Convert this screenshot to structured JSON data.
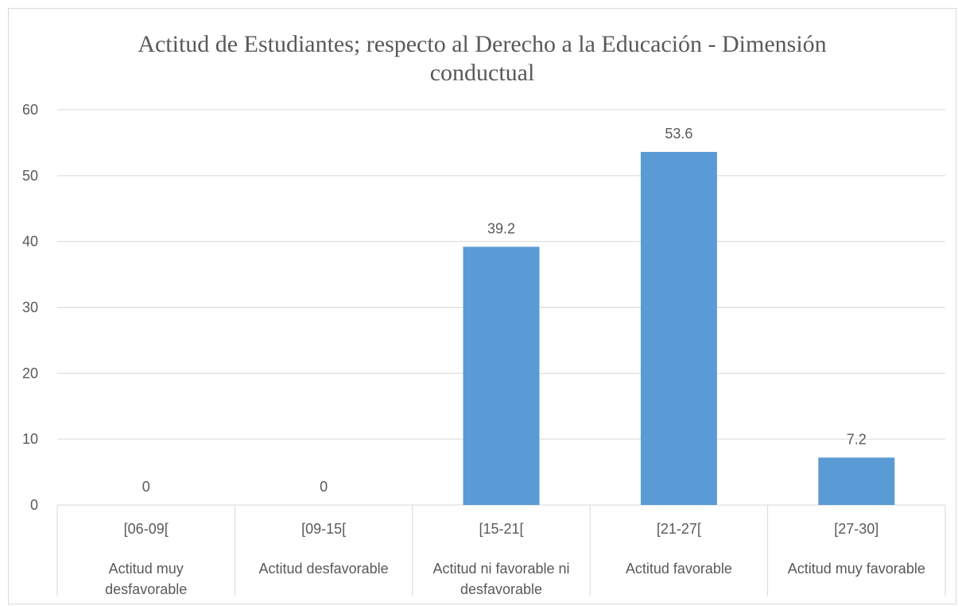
{
  "chart_data": {
    "type": "bar",
    "title_lines": [
      "Actitud de Estudiantes;  respecto al Derecho a la Educación - Dimensión",
      "conductual"
    ],
    "categories": [
      {
        "range": "[06-09[",
        "label": [
          "Actitud muy",
          "desfavorable"
        ]
      },
      {
        "range": "[09-15[",
        "label": [
          "Actitud desfavorable"
        ]
      },
      {
        "range": "[15-21[",
        "label": [
          "Actitud ni favorable ni",
          "desfavorable"
        ]
      },
      {
        "range": "[21-27[",
        "label": [
          "Actitud favorable"
        ]
      },
      {
        "range": "[27-30]",
        "label": [
          "Actitud muy favorable"
        ]
      }
    ],
    "values": [
      0,
      0,
      39.2,
      53.6,
      7.2
    ],
    "data_labels": [
      "0",
      "0",
      "39.2",
      "53.6",
      "7.2"
    ],
    "y_ticks": [
      "0",
      "10",
      "20",
      "30",
      "40",
      "50",
      "60"
    ],
    "ylim": [
      0,
      60
    ],
    "grid": true,
    "bar_color": "#5b9bd5",
    "text_color": "#595959",
    "grid_color": "#d9d9d9"
  }
}
